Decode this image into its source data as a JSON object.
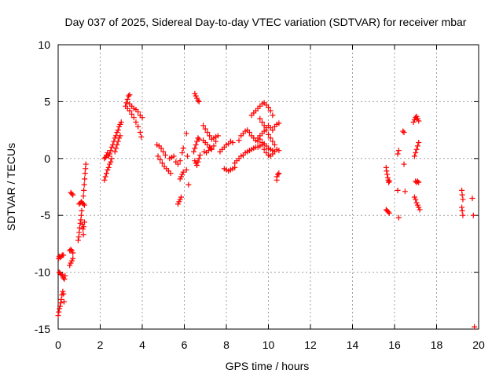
{
  "chart_data": {
    "type": "scatter",
    "title": "Day 037 of 2025, Sidereal Day-to-day VTEC variation (SDTVAR) for receiver mbar",
    "xlabel": "GPS time / hours",
    "ylabel": "SDTVAR / TECUs",
    "xlim": [
      0,
      20
    ],
    "ylim": [
      -15,
      10
    ],
    "x_ticks": [
      "0",
      "2",
      "4",
      "6",
      "8",
      "10",
      "12",
      "14",
      "16",
      "18",
      "20"
    ],
    "y_ticks": [
      "10",
      "5",
      "0",
      "-5",
      "-10",
      "-15"
    ],
    "grid": true,
    "marker": "plus",
    "color": "#ff0000",
    "series": [
      {
        "name": "SDTVAR",
        "points": [
          [
            0.0,
            -13.8
          ],
          [
            0.03,
            -13.5
          ],
          [
            0.06,
            -13.2
          ],
          [
            0.09,
            -13.0
          ],
          [
            0.12,
            -12.7
          ],
          [
            0.15,
            -12.4
          ],
          [
            0.18,
            -12.0
          ],
          [
            0.22,
            -11.7
          ],
          [
            0.25,
            -11.9
          ],
          [
            0.28,
            -12.6
          ],
          [
            0.02,
            -8.8
          ],
          [
            0.05,
            -8.6
          ],
          [
            0.1,
            -8.7
          ],
          [
            0.15,
            -8.6
          ],
          [
            0.2,
            -8.5
          ],
          [
            0.25,
            -8.5
          ],
          [
            0.05,
            -10.0
          ],
          [
            0.1,
            -10.1
          ],
          [
            0.15,
            -10.2
          ],
          [
            0.2,
            -10.3
          ],
          [
            0.25,
            -10.5
          ],
          [
            0.3,
            -10.6
          ],
          [
            0.33,
            -10.3
          ],
          [
            0.55,
            -8.1
          ],
          [
            0.6,
            -8.0
          ],
          [
            0.65,
            -8.1
          ],
          [
            0.7,
            -8.3
          ],
          [
            0.55,
            -9.4
          ],
          [
            0.6,
            -9.2
          ],
          [
            0.65,
            -9.0
          ],
          [
            0.7,
            -8.8
          ],
          [
            0.6,
            -3.0
          ],
          [
            0.65,
            -3.1
          ],
          [
            0.7,
            -3.2
          ],
          [
            0.95,
            -7.2
          ],
          [
            0.98,
            -6.9
          ],
          [
            1.0,
            -6.5
          ],
          [
            1.02,
            -6.1
          ],
          [
            1.05,
            -5.7
          ],
          [
            1.08,
            -5.4
          ],
          [
            1.1,
            -5.0
          ],
          [
            1.12,
            -4.6
          ],
          [
            1.15,
            -5.8
          ],
          [
            1.18,
            -6.2
          ],
          [
            1.2,
            -6.7
          ],
          [
            1.22,
            -6.0
          ],
          [
            1.25,
            -5.6
          ],
          [
            1.0,
            -4.0
          ],
          [
            1.05,
            -3.9
          ],
          [
            1.1,
            -3.8
          ],
          [
            1.15,
            -3.9
          ],
          [
            1.2,
            -4.0
          ],
          [
            1.25,
            -4.1
          ],
          [
            1.2,
            -3.3
          ],
          [
            1.22,
            -2.8
          ],
          [
            1.24,
            -2.3
          ],
          [
            1.26,
            -1.8
          ],
          [
            1.28,
            -1.3
          ],
          [
            1.3,
            -0.9
          ],
          [
            1.32,
            -0.5
          ],
          [
            2.2,
            -1.9
          ],
          [
            2.25,
            -1.6
          ],
          [
            2.3,
            -1.3
          ],
          [
            2.35,
            -1.0
          ],
          [
            2.4,
            -0.8
          ],
          [
            2.45,
            -0.5
          ],
          [
            2.5,
            -0.3
          ],
          [
            2.55,
            0.0
          ],
          [
            2.2,
            0.0
          ],
          [
            2.25,
            0.1
          ],
          [
            2.3,
            0.3
          ],
          [
            2.35,
            0.5
          ],
          [
            2.4,
            0.2
          ],
          [
            2.45,
            0.4
          ],
          [
            2.5,
            0.7
          ],
          [
            2.55,
            1.0
          ],
          [
            2.6,
            1.2
          ],
          [
            2.65,
            1.5
          ],
          [
            2.7,
            1.8
          ],
          [
            2.75,
            2.0
          ],
          [
            2.8,
            2.3
          ],
          [
            2.85,
            2.5
          ],
          [
            2.9,
            2.8
          ],
          [
            2.95,
            3.0
          ],
          [
            3.0,
            3.2
          ],
          [
            2.7,
            0.6
          ],
          [
            2.75,
            0.9
          ],
          [
            2.8,
            1.2
          ],
          [
            2.85,
            1.5
          ],
          [
            2.9,
            1.8
          ],
          [
            2.95,
            2.0
          ],
          [
            3.2,
            4.6
          ],
          [
            3.25,
            4.9
          ],
          [
            3.3,
            5.2
          ],
          [
            3.35,
            5.5
          ],
          [
            3.4,
            5.6
          ],
          [
            3.3,
            4.4
          ],
          [
            3.4,
            4.2
          ],
          [
            3.5,
            3.9
          ],
          [
            3.6,
            3.6
          ],
          [
            3.7,
            3.2
          ],
          [
            3.8,
            2.8
          ],
          [
            3.9,
            2.3
          ],
          [
            3.95,
            1.9
          ],
          [
            3.4,
            4.8
          ],
          [
            3.5,
            4.6
          ],
          [
            3.6,
            4.4
          ],
          [
            3.7,
            4.3
          ],
          [
            3.8,
            4.1
          ],
          [
            3.9,
            3.8
          ],
          [
            4.0,
            3.6
          ],
          [
            4.7,
            1.2
          ],
          [
            4.8,
            1.1
          ],
          [
            4.9,
            0.9
          ],
          [
            5.0,
            0.6
          ],
          [
            5.1,
            0.3
          ],
          [
            4.75,
            0.2
          ],
          [
            4.85,
            -0.1
          ],
          [
            4.95,
            -0.4
          ],
          [
            5.05,
            -0.7
          ],
          [
            5.15,
            -0.9
          ],
          [
            5.25,
            -1.1
          ],
          [
            5.35,
            -1.3
          ],
          [
            5.3,
            0.0
          ],
          [
            5.4,
            0.1
          ],
          [
            5.5,
            0.2
          ],
          [
            5.6,
            -0.3
          ],
          [
            5.7,
            -0.5
          ],
          [
            5.8,
            -0.2
          ],
          [
            5.9,
            0.5
          ],
          [
            5.95,
            0.9
          ],
          [
            5.7,
            -4.0
          ],
          [
            5.75,
            -3.8
          ],
          [
            5.8,
            -3.6
          ],
          [
            5.85,
            -3.4
          ],
          [
            5.8,
            -1.8
          ],
          [
            5.85,
            -1.6
          ],
          [
            5.9,
            -1.4
          ],
          [
            5.95,
            -1.2
          ],
          [
            6.1,
            -1.0
          ],
          [
            6.15,
            0.2
          ],
          [
            6.2,
            -2.3
          ],
          [
            6.1,
            2.2
          ],
          [
            6.45,
            0.6
          ],
          [
            6.5,
            0.9
          ],
          [
            6.55,
            1.2
          ],
          [
            6.6,
            1.5
          ],
          [
            6.65,
            1.8
          ],
          [
            6.7,
            1.7
          ],
          [
            6.5,
            -0.2
          ],
          [
            6.55,
            -0.4
          ],
          [
            6.6,
            -0.6
          ],
          [
            6.65,
            -0.3
          ],
          [
            6.7,
            0.0
          ],
          [
            6.75,
            0.3
          ],
          [
            6.5,
            5.7
          ],
          [
            6.55,
            5.5
          ],
          [
            6.6,
            5.3
          ],
          [
            6.65,
            5.1
          ],
          [
            6.7,
            5.0
          ],
          [
            6.9,
            2.9
          ],
          [
            7.0,
            2.6
          ],
          [
            7.1,
            2.3
          ],
          [
            7.2,
            2.0
          ],
          [
            7.3,
            1.7
          ],
          [
            6.9,
            1.6
          ],
          [
            7.0,
            1.4
          ],
          [
            7.1,
            1.2
          ],
          [
            7.2,
            1.0
          ],
          [
            7.3,
            0.8
          ],
          [
            7.4,
            1.1
          ],
          [
            7.5,
            1.5
          ],
          [
            6.95,
            0.6
          ],
          [
            7.05,
            0.5
          ],
          [
            7.15,
            0.7
          ],
          [
            7.25,
            0.9
          ],
          [
            7.4,
            1.8
          ],
          [
            7.5,
            1.9
          ],
          [
            7.6,
            2.0
          ],
          [
            7.7,
            0.6
          ],
          [
            7.8,
            0.8
          ],
          [
            7.9,
            1.0
          ],
          [
            8.0,
            1.2
          ],
          [
            8.1,
            1.3
          ],
          [
            8.2,
            1.5
          ],
          [
            8.3,
            1.4
          ],
          [
            7.9,
            -0.9
          ],
          [
            8.0,
            -1.0
          ],
          [
            8.1,
            -1.1
          ],
          [
            8.2,
            -1.0
          ],
          [
            8.3,
            -0.9
          ],
          [
            8.4,
            -0.8
          ],
          [
            8.4,
            -0.4
          ],
          [
            8.5,
            -0.2
          ],
          [
            8.6,
            0.0
          ],
          [
            8.7,
            0.2
          ],
          [
            8.8,
            0.3
          ],
          [
            8.9,
            0.5
          ],
          [
            9.0,
            0.6
          ],
          [
            9.1,
            0.7
          ],
          [
            9.2,
            0.8
          ],
          [
            9.3,
            0.9
          ],
          [
            9.4,
            1.0
          ],
          [
            9.5,
            1.0
          ],
          [
            9.6,
            1.1
          ],
          [
            9.7,
            1.2
          ],
          [
            9.8,
            1.3
          ],
          [
            9.9,
            1.1
          ],
          [
            10.0,
            0.9
          ],
          [
            10.1,
            0.8
          ],
          [
            10.2,
            0.7
          ],
          [
            10.3,
            0.6
          ],
          [
            10.4,
            0.8
          ],
          [
            10.5,
            0.7
          ],
          [
            8.6,
            1.6
          ],
          [
            8.7,
            2.0
          ],
          [
            8.8,
            2.2
          ],
          [
            8.9,
            2.4
          ],
          [
            9.0,
            2.5
          ],
          [
            9.1,
            2.3
          ],
          [
            9.2,
            2.0
          ],
          [
            9.3,
            1.8
          ],
          [
            9.4,
            1.6
          ],
          [
            9.5,
            1.8
          ],
          [
            9.6,
            2.0
          ],
          [
            9.7,
            2.2
          ],
          [
            9.8,
            2.4
          ],
          [
            9.9,
            2.7
          ],
          [
            10.0,
            2.9
          ],
          [
            10.1,
            2.7
          ],
          [
            10.2,
            2.5
          ],
          [
            10.3,
            2.8
          ],
          [
            10.4,
            3.0
          ],
          [
            10.5,
            3.1
          ],
          [
            9.2,
            3.8
          ],
          [
            9.3,
            4.0
          ],
          [
            9.4,
            4.2
          ],
          [
            9.5,
            4.4
          ],
          [
            9.6,
            4.6
          ],
          [
            9.7,
            4.8
          ],
          [
            9.8,
            4.9
          ],
          [
            9.9,
            4.7
          ],
          [
            10.0,
            4.5
          ],
          [
            10.1,
            4.2
          ],
          [
            10.2,
            3.8
          ],
          [
            9.6,
            3.5
          ],
          [
            9.7,
            3.2
          ],
          [
            9.8,
            2.9
          ],
          [
            9.9,
            2.5
          ],
          [
            10.0,
            2.1
          ],
          [
            10.1,
            1.8
          ],
          [
            10.2,
            1.5
          ],
          [
            10.3,
            1.2
          ],
          [
            9.5,
            1.5
          ],
          [
            9.6,
            1.7
          ],
          [
            9.7,
            1.4
          ],
          [
            9.8,
            0.8
          ],
          [
            9.9,
            0.5
          ],
          [
            10.0,
            0.3
          ],
          [
            10.1,
            0.2
          ],
          [
            10.2,
            0.4
          ],
          [
            10.4,
            -1.6
          ],
          [
            10.45,
            -1.4
          ],
          [
            10.5,
            -1.3
          ],
          [
            10.4,
            -1.9
          ],
          [
            15.6,
            -0.8
          ],
          [
            15.62,
            -1.1
          ],
          [
            15.65,
            -1.4
          ],
          [
            15.68,
            -1.7
          ],
          [
            15.7,
            -1.9
          ],
          [
            15.72,
            -2.1
          ],
          [
            15.75,
            -2.0
          ],
          [
            15.6,
            -4.5
          ],
          [
            15.65,
            -4.6
          ],
          [
            15.7,
            -4.7
          ],
          [
            15.75,
            -4.8
          ],
          [
            16.15,
            0.4
          ],
          [
            16.2,
            0.7
          ],
          [
            16.15,
            -2.8
          ],
          [
            16.2,
            -5.2
          ],
          [
            16.4,
            2.4
          ],
          [
            16.45,
            2.3
          ],
          [
            16.45,
            -0.5
          ],
          [
            16.5,
            -2.9
          ],
          [
            16.9,
            3.2
          ],
          [
            16.95,
            3.4
          ],
          [
            17.0,
            3.6
          ],
          [
            17.05,
            3.7
          ],
          [
            17.1,
            3.5
          ],
          [
            17.15,
            3.3
          ],
          [
            16.95,
            0.2
          ],
          [
            17.0,
            0.5
          ],
          [
            17.05,
            0.8
          ],
          [
            17.1,
            1.1
          ],
          [
            17.15,
            1.4
          ],
          [
            17.0,
            -2.0
          ],
          [
            17.05,
            -2.1
          ],
          [
            17.1,
            -2.0
          ],
          [
            17.15,
            -2.1
          ],
          [
            16.95,
            -3.4
          ],
          [
            17.0,
            -3.6
          ],
          [
            17.05,
            -3.9
          ],
          [
            17.1,
            -4.1
          ],
          [
            17.15,
            -4.3
          ],
          [
            17.2,
            -4.5
          ],
          [
            19.2,
            -2.8
          ],
          [
            19.22,
            -3.2
          ],
          [
            19.25,
            -3.6
          ],
          [
            19.2,
            -4.3
          ],
          [
            19.22,
            -4.6
          ],
          [
            19.25,
            -5.0
          ],
          [
            19.7,
            -3.5
          ],
          [
            19.75,
            -5.0
          ],
          [
            19.8,
            -14.8
          ]
        ]
      }
    ]
  }
}
